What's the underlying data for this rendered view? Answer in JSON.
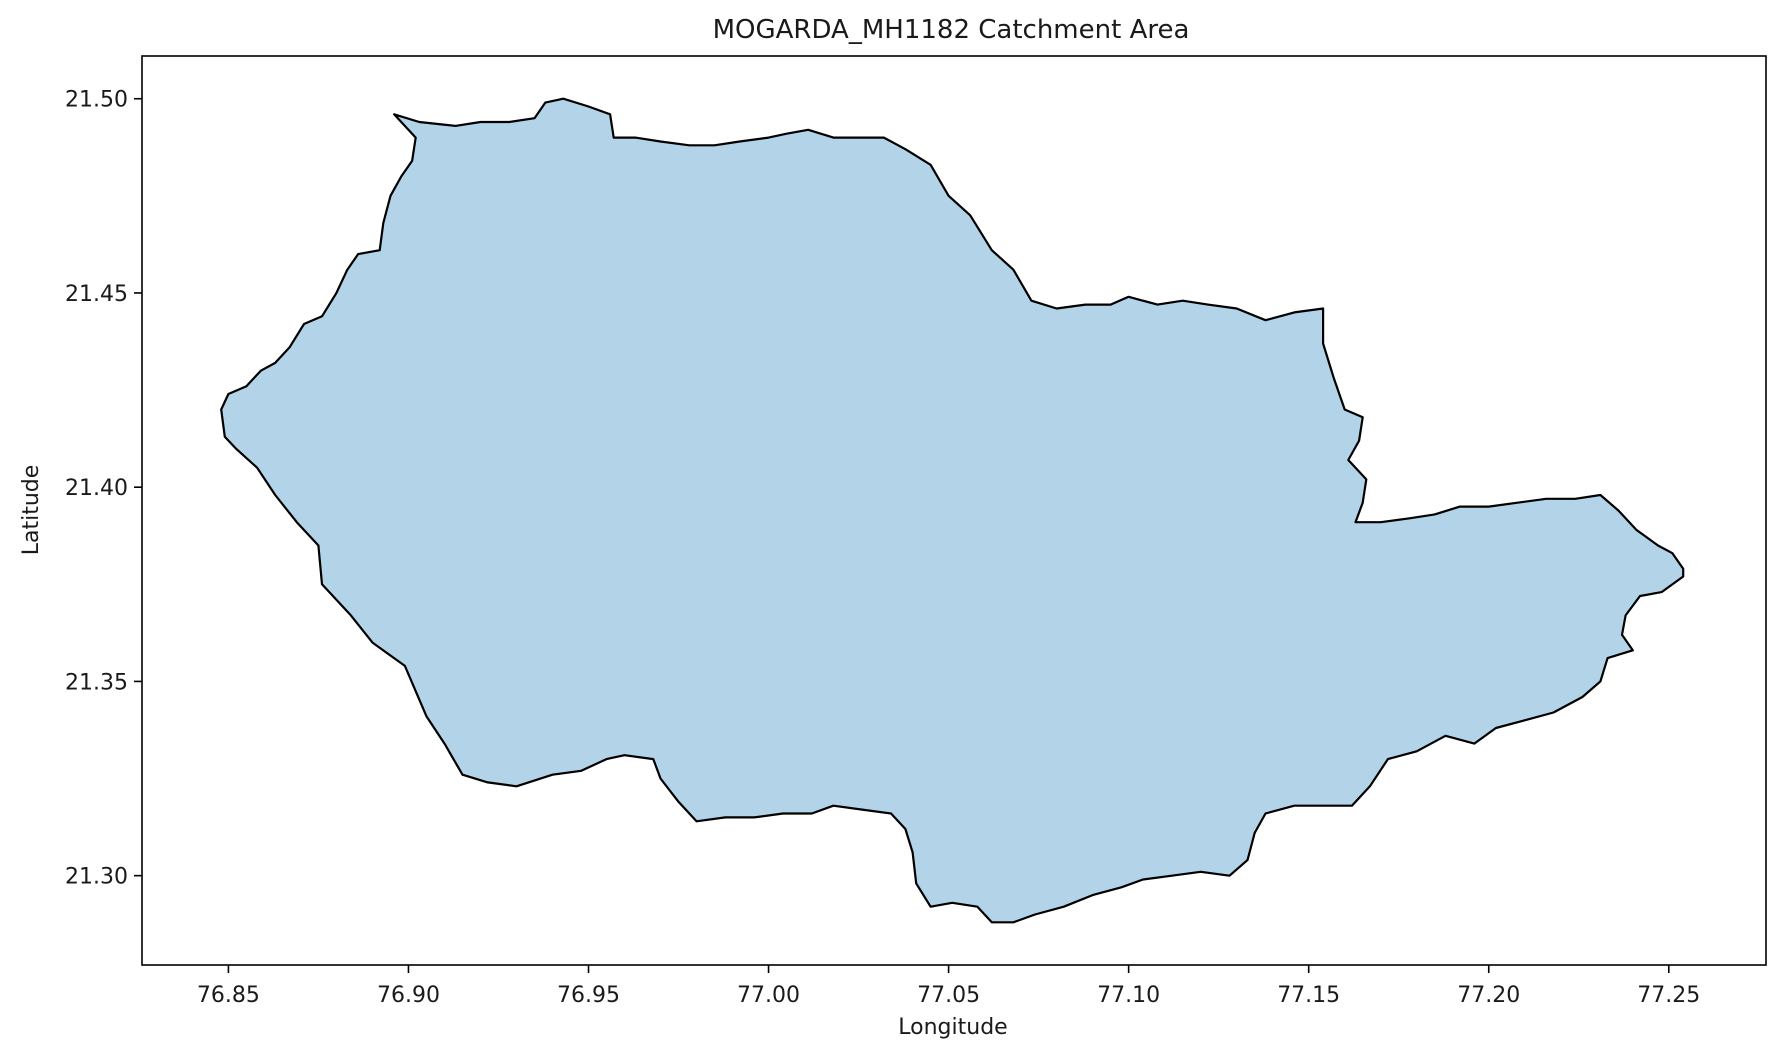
{
  "chart_data": {
    "type": "area",
    "title": "MOGARDA_MH1182 Catchment Area",
    "xlabel": "Longitude",
    "ylabel": "Latitude",
    "xlim": [
      76.826,
      77.277
    ],
    "ylim": [
      21.277,
      21.511
    ],
    "xticks": [
      76.85,
      76.9,
      76.95,
      77.0,
      77.05,
      77.1,
      77.15,
      77.2,
      77.25
    ],
    "yticks": [
      21.3,
      21.35,
      21.4,
      21.45,
      21.5
    ],
    "xtick_labels": [
      "76.85",
      "76.90",
      "76.95",
      "77.00",
      "77.05",
      "77.10",
      "77.15",
      "77.20",
      "77.25"
    ],
    "ytick_labels": [
      "21.30",
      "21.35",
      "21.40",
      "21.45",
      "21.50"
    ],
    "grid": false,
    "polygon": {
      "fill": "#b3d4e8",
      "stroke": "#000000",
      "points": [
        [
          76.896,
          21.496
        ],
        [
          76.903,
          21.494
        ],
        [
          76.913,
          21.493
        ],
        [
          76.92,
          21.494
        ],
        [
          76.928,
          21.494
        ],
        [
          76.935,
          21.495
        ],
        [
          76.938,
          21.499
        ],
        [
          76.943,
          21.5
        ],
        [
          76.95,
          21.498
        ],
        [
          76.956,
          21.496
        ],
        [
          76.957,
          21.49
        ],
        [
          76.963,
          21.49
        ],
        [
          76.97,
          21.489
        ],
        [
          76.978,
          21.488
        ],
        [
          76.985,
          21.488
        ],
        [
          76.992,
          21.489
        ],
        [
          77.0,
          21.49
        ],
        [
          77.005,
          21.491
        ],
        [
          77.011,
          21.492
        ],
        [
          77.018,
          21.49
        ],
        [
          77.025,
          21.49
        ],
        [
          77.032,
          21.49
        ],
        [
          77.038,
          21.487
        ],
        [
          77.045,
          21.483
        ],
        [
          77.05,
          21.475
        ],
        [
          77.056,
          21.47
        ],
        [
          77.062,
          21.461
        ],
        [
          77.068,
          21.456
        ],
        [
          77.073,
          21.448
        ],
        [
          77.08,
          21.446
        ],
        [
          77.088,
          21.447
        ],
        [
          77.095,
          21.447
        ],
        [
          77.1,
          21.449
        ],
        [
          77.108,
          21.447
        ],
        [
          77.115,
          21.448
        ],
        [
          77.122,
          21.447
        ],
        [
          77.13,
          21.446
        ],
        [
          77.138,
          21.443
        ],
        [
          77.146,
          21.445
        ],
        [
          77.154,
          21.446
        ],
        [
          77.154,
          21.437
        ],
        [
          77.157,
          21.428
        ],
        [
          77.16,
          21.42
        ],
        [
          77.165,
          21.418
        ],
        [
          77.164,
          21.412
        ],
        [
          77.161,
          21.407
        ],
        [
          77.166,
          21.402
        ],
        [
          77.165,
          21.396
        ],
        [
          77.163,
          21.391
        ],
        [
          77.17,
          21.391
        ],
        [
          77.178,
          21.392
        ],
        [
          77.185,
          21.393
        ],
        [
          77.192,
          21.395
        ],
        [
          77.2,
          21.395
        ],
        [
          77.208,
          21.396
        ],
        [
          77.216,
          21.397
        ],
        [
          77.224,
          21.397
        ],
        [
          77.231,
          21.398
        ],
        [
          77.236,
          21.394
        ],
        [
          77.241,
          21.389
        ],
        [
          77.247,
          21.385
        ],
        [
          77.251,
          21.383
        ],
        [
          77.254,
          21.379
        ],
        [
          77.254,
          21.377
        ],
        [
          77.248,
          21.373
        ],
        [
          77.242,
          21.372
        ],
        [
          77.238,
          21.367
        ],
        [
          77.237,
          21.362
        ],
        [
          77.24,
          21.358
        ],
        [
          77.233,
          21.356
        ],
        [
          77.231,
          21.35
        ],
        [
          77.226,
          21.346
        ],
        [
          77.218,
          21.342
        ],
        [
          77.21,
          21.34
        ],
        [
          77.202,
          21.338
        ],
        [
          77.196,
          21.334
        ],
        [
          77.188,
          21.336
        ],
        [
          77.18,
          21.332
        ],
        [
          77.172,
          21.33
        ],
        [
          77.167,
          21.323
        ],
        [
          77.162,
          21.318
        ],
        [
          77.154,
          21.318
        ],
        [
          77.146,
          21.318
        ],
        [
          77.138,
          21.316
        ],
        [
          77.135,
          21.311
        ],
        [
          77.133,
          21.304
        ],
        [
          77.128,
          21.3
        ],
        [
          77.12,
          21.301
        ],
        [
          77.112,
          21.3
        ],
        [
          77.104,
          21.299
        ],
        [
          77.098,
          21.297
        ],
        [
          77.09,
          21.295
        ],
        [
          77.082,
          21.292
        ],
        [
          77.074,
          21.29
        ],
        [
          77.068,
          21.288
        ],
        [
          77.062,
          21.288
        ],
        [
          77.058,
          21.292
        ],
        [
          77.051,
          21.293
        ],
        [
          77.045,
          21.292
        ],
        [
          77.041,
          21.298
        ],
        [
          77.04,
          21.306
        ],
        [
          77.038,
          21.312
        ],
        [
          77.034,
          21.316
        ],
        [
          77.026,
          21.317
        ],
        [
          77.018,
          21.318
        ],
        [
          77.012,
          21.316
        ],
        [
          77.004,
          21.316
        ],
        [
          76.996,
          21.315
        ],
        [
          76.988,
          21.315
        ],
        [
          76.98,
          21.314
        ],
        [
          76.975,
          21.319
        ],
        [
          76.97,
          21.325
        ],
        [
          76.968,
          21.33
        ],
        [
          76.96,
          21.331
        ],
        [
          76.955,
          21.33
        ],
        [
          76.948,
          21.327
        ],
        [
          76.94,
          21.326
        ],
        [
          76.93,
          21.323
        ],
        [
          76.922,
          21.324
        ],
        [
          76.915,
          21.326
        ],
        [
          76.91,
          21.334
        ],
        [
          76.905,
          21.341
        ],
        [
          76.899,
          21.354
        ],
        [
          76.89,
          21.36
        ],
        [
          76.884,
          21.367
        ],
        [
          76.876,
          21.375
        ],
        [
          76.875,
          21.385
        ],
        [
          76.869,
          21.391
        ],
        [
          76.863,
          21.398
        ],
        [
          76.858,
          21.405
        ],
        [
          76.852,
          21.41
        ],
        [
          76.849,
          21.413
        ],
        [
          76.848,
          21.42
        ],
        [
          76.85,
          21.424
        ],
        [
          76.855,
          21.426
        ],
        [
          76.859,
          21.43
        ],
        [
          76.863,
          21.432
        ],
        [
          76.867,
          21.436
        ],
        [
          76.871,
          21.442
        ],
        [
          76.876,
          21.444
        ],
        [
          76.88,
          21.45
        ],
        [
          76.883,
          21.456
        ],
        [
          76.886,
          21.46
        ],
        [
          76.892,
          21.461
        ],
        [
          76.893,
          21.468
        ],
        [
          76.895,
          21.475
        ],
        [
          76.898,
          21.48
        ],
        [
          76.901,
          21.484
        ],
        [
          76.902,
          21.49
        ]
      ]
    }
  }
}
